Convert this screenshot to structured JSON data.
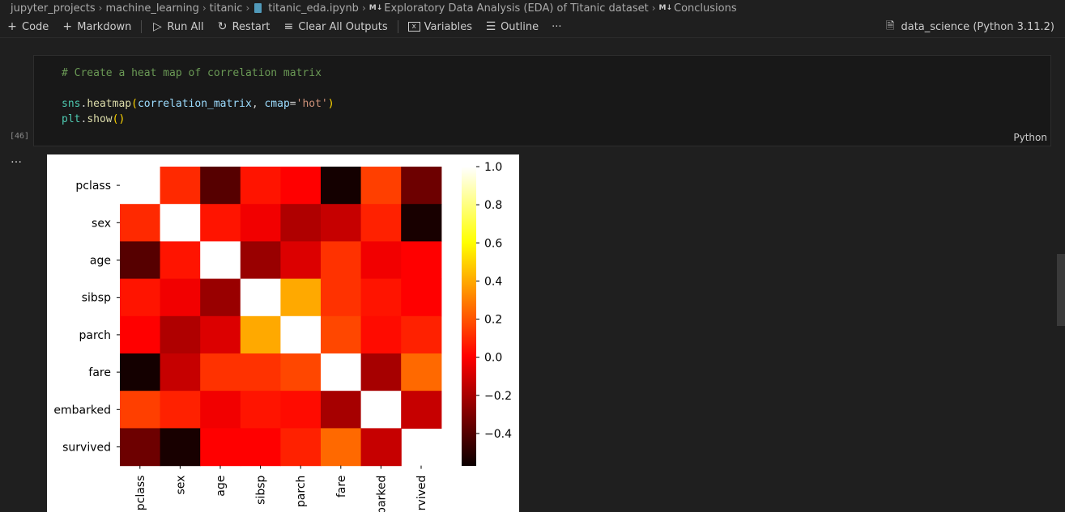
{
  "breadcrumb": {
    "items": [
      "jupyter_projects",
      "machine_learning",
      "titanic",
      "titanic_eda.ipynb",
      "Exploratory Data Analysis (EDA) of Titanic dataset",
      "Conclusions"
    ],
    "md_tag": "M↓"
  },
  "toolbar": {
    "code": "Code",
    "markdown": "Markdown",
    "run_all": "Run All",
    "restart": "Restart",
    "clear_all": "Clear All Outputs",
    "variables": "Variables",
    "outline": "Outline",
    "more": "···",
    "kernel": "data_science (Python 3.11.2)"
  },
  "cell": {
    "execution_count": "[46]",
    "language": "Python",
    "comment": "# Create a heat map of correlation matrix",
    "line2_obj": "sns",
    "line2_fn": "heatmap",
    "line2_arg": "correlation_matrix",
    "line2_kw": "cmap",
    "line2_str": "'hot'",
    "line3_obj": "plt",
    "line3_fn": "show",
    "output_marker": "…"
  },
  "chart_data": {
    "type": "heatmap",
    "colormap": "hot",
    "labels": [
      "pclass",
      "sex",
      "age",
      "sibsp",
      "parch",
      "fare",
      "embarked",
      "survived"
    ],
    "x_tick_labels": [
      "pclass",
      "sex",
      "age",
      "sibsp",
      "parch",
      "fare",
      "parked",
      "rvived"
    ],
    "matrix": [
      [
        1.0,
        0.1,
        -0.4,
        0.05,
        0.0,
        -0.55,
        0.15,
        -0.35
      ],
      [
        0.1,
        1.0,
        0.05,
        -0.05,
        -0.2,
        -0.15,
        0.08,
        -0.54
      ],
      [
        -0.4,
        0.05,
        1.0,
        -0.25,
        -0.1,
        0.12,
        -0.05,
        0.0
      ],
      [
        0.05,
        -0.05,
        -0.25,
        1.0,
        0.4,
        0.12,
        0.05,
        0.0
      ],
      [
        0.0,
        -0.2,
        -0.1,
        0.4,
        1.0,
        0.17,
        0.03,
        0.08
      ],
      [
        -0.55,
        -0.15,
        0.12,
        0.12,
        0.17,
        1.0,
        -0.22,
        0.25
      ],
      [
        0.15,
        0.08,
        -0.05,
        0.05,
        0.03,
        -0.22,
        1.0,
        -0.15
      ],
      [
        -0.35,
        -0.54,
        0.0,
        0.0,
        0.08,
        0.25,
        -0.15,
        1.0
      ]
    ],
    "colorbar": {
      "vmin": -0.57,
      "vmax": 1.0,
      "ticks": [
        1.0,
        0.8,
        0.6,
        0.4,
        0.2,
        0.0,
        -0.2,
        -0.4
      ],
      "tick_labels": [
        "1.0",
        "0.8",
        "0.6",
        "0.4",
        "0.2",
        "0.0",
        "−0.2",
        "−0.4"
      ]
    }
  }
}
